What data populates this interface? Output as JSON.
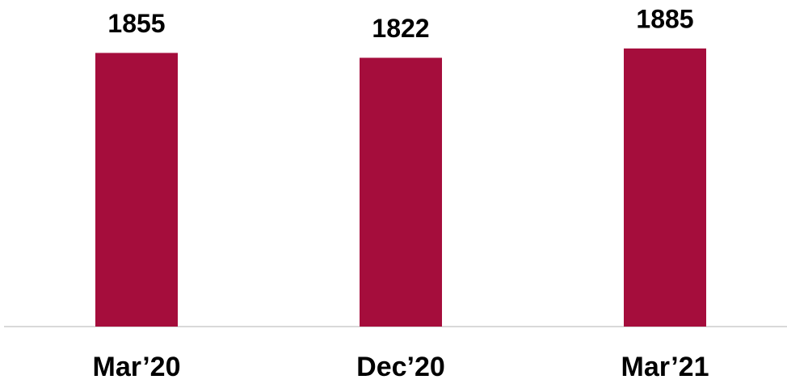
{
  "chart_data": {
    "type": "bar",
    "categories": [
      "Mar’20",
      "Dec’20",
      "Mar’21"
    ],
    "values": [
      1855,
      1822,
      1885
    ],
    "color": "#a50d3c"
  }
}
